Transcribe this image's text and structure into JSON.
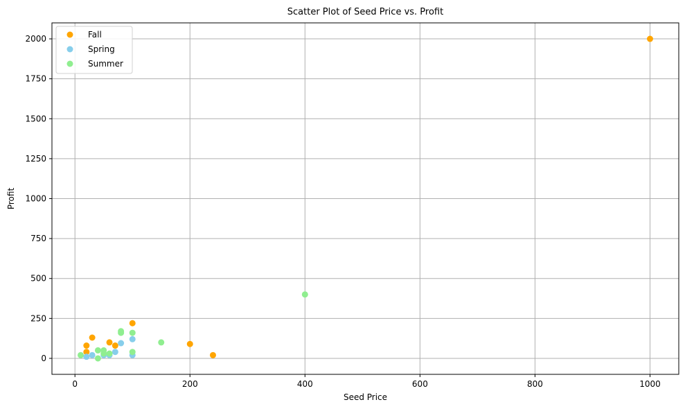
{
  "chart_data": {
    "type": "scatter",
    "title": "Scatter Plot of Seed Price vs. Profit",
    "xlabel": "Seed Price",
    "ylabel": "Profit",
    "xlim": [
      -40,
      1050
    ],
    "ylim": [
      -100,
      2100
    ],
    "x_ticks": [
      0,
      200,
      400,
      600,
      800,
      1000
    ],
    "y_ticks": [
      0,
      250,
      500,
      750,
      1000,
      1250,
      1500,
      1750,
      2000
    ],
    "grid": true,
    "legend_position": "top-left",
    "series": [
      {
        "name": "Fall",
        "color": "#ffa500",
        "points": [
          {
            "x": 20,
            "y": 80
          },
          {
            "x": 20,
            "y": 40
          },
          {
            "x": 30,
            "y": 130
          },
          {
            "x": 60,
            "y": 100
          },
          {
            "x": 70,
            "y": 80
          },
          {
            "x": 100,
            "y": 220
          },
          {
            "x": 200,
            "y": 90
          },
          {
            "x": 240,
            "y": 20
          },
          {
            "x": 1000,
            "y": 2000
          }
        ]
      },
      {
        "name": "Spring",
        "color": "#87ceeb",
        "points": [
          {
            "x": 20,
            "y": 10
          },
          {
            "x": 30,
            "y": 20
          },
          {
            "x": 50,
            "y": 20
          },
          {
            "x": 60,
            "y": 20
          },
          {
            "x": 70,
            "y": 40
          },
          {
            "x": 80,
            "y": 95
          },
          {
            "x": 100,
            "y": 120
          },
          {
            "x": 100,
            "y": 20
          }
        ]
      },
      {
        "name": "Summer",
        "color": "#90ee90",
        "points": [
          {
            "x": 10,
            "y": 20
          },
          {
            "x": 40,
            "y": 0
          },
          {
            "x": 40,
            "y": 50
          },
          {
            "x": 50,
            "y": 50
          },
          {
            "x": 50,
            "y": 30
          },
          {
            "x": 60,
            "y": 30
          },
          {
            "x": 80,
            "y": 160
          },
          {
            "x": 80,
            "y": 170
          },
          {
            "x": 100,
            "y": 160
          },
          {
            "x": 100,
            "y": 40
          },
          {
            "x": 150,
            "y": 100
          },
          {
            "x": 400,
            "y": 400
          }
        ]
      }
    ]
  }
}
